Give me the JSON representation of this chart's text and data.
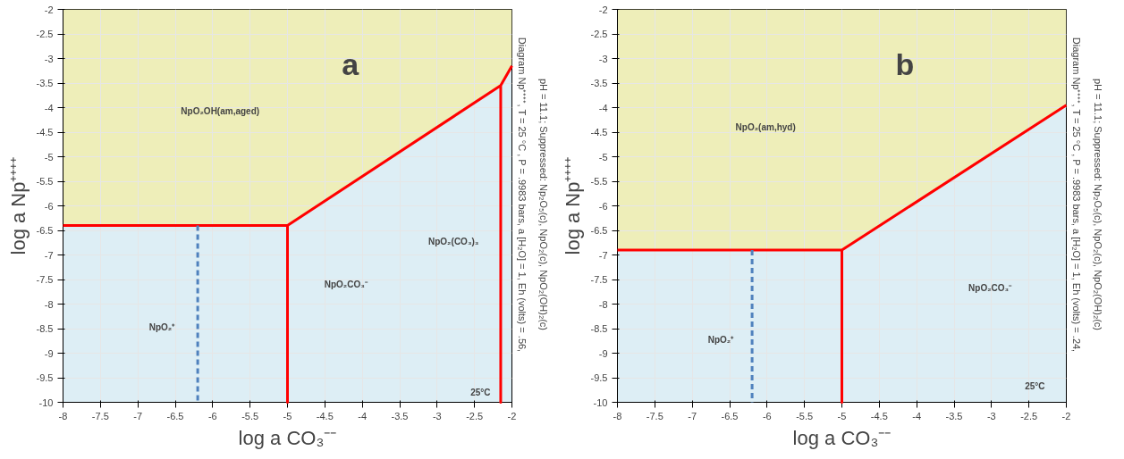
{
  "chart_data": [
    {
      "type": "line",
      "title": "a",
      "xlabel": "log a CO₃⁻⁻",
      "ylabel": "log a Np⁺⁺⁺⁺",
      "xlim": [
        -8,
        -2
      ],
      "ylim": [
        -10,
        -2
      ],
      "xticks": [
        -8,
        -7.5,
        -7,
        -6.5,
        -6,
        -5.5,
        -5,
        -4.5,
        -4,
        -3.5,
        -3,
        -2.5,
        -2
      ],
      "yticks": [
        -10,
        -9.5,
        -9,
        -8.5,
        -8,
        -7.5,
        -7,
        -6.5,
        -6,
        -5.5,
        -5,
        -4.5,
        -4,
        -3.5,
        -3,
        -2.5,
        -2
      ],
      "grid": true,
      "series": [
        {
          "type": "area",
          "color": "#eeeeb9",
          "x": [
            -8,
            -5,
            -2.15,
            -2
          ],
          "values": [
            -6.4,
            -6.4,
            -3.55,
            -3.15
          ]
        },
        {
          "type": "line",
          "color": "#ff0000",
          "x": [
            -8,
            -5,
            -5,
            -5,
            -2.15,
            -2.15,
            -2.15,
            -2
          ],
          "values": [
            -6.4,
            -6.4,
            -10,
            -6.4,
            -3.55,
            -10,
            -3.55,
            -3.15
          ]
        },
        {
          "type": "line",
          "color": "#4f81bd",
          "line_style": "dashed",
          "x": [
            -6.2,
            -6.2
          ],
          "values": [
            -6.4,
            -10
          ]
        }
      ],
      "annotations": [
        "NpO₂OH(am,aged)",
        "NpO₂⁺",
        "NpO₂CO₃⁻",
        "NpO₂(CO₃)₃",
        "25°C",
        "Diagram Np⁺⁺⁺⁺, T  =  25 °C , P  =  .9983 bars, a [H₂O]  =  1, Eh (volts)  =  .56,",
        "pH  = 11.1; Suppressed: Np₂O₅(c), NpO₂(c), NpO₂(OH)₂(c)"
      ]
    },
    {
      "type": "line",
      "title": "b",
      "xlabel": "log a CO₃⁻⁻",
      "ylabel": "log a Np⁺⁺⁺⁺",
      "xlim": [
        -8,
        -2
      ],
      "ylim": [
        -10,
        -2
      ],
      "xticks": [
        -8,
        -7.5,
        -7,
        -6.5,
        -6,
        -5.5,
        -5,
        -4.5,
        -4,
        -3.5,
        -3,
        -2.5,
        -2
      ],
      "yticks": [
        -10,
        -9.5,
        -9,
        -8.5,
        -8,
        -7.5,
        -7,
        -6.5,
        -6,
        -5.5,
        -5,
        -4.5,
        -4,
        -3.5,
        -3,
        -2.5,
        -2
      ],
      "grid": true,
      "series": [
        {
          "type": "area",
          "color": "#eeeeb9",
          "x": [
            -8,
            -5,
            -2
          ],
          "values": [
            -6.9,
            -6.9,
            -3.95
          ]
        },
        {
          "type": "line",
          "color": "#ff0000",
          "x": [
            -8,
            -5,
            -5,
            -5,
            -2
          ],
          "values": [
            -6.9,
            -6.9,
            -10,
            -6.9,
            -3.95
          ]
        },
        {
          "type": "line",
          "color": "#4f81bd",
          "line_style": "dashed",
          "x": [
            -6.2,
            -6.2
          ],
          "values": [
            -6.9,
            -10
          ]
        }
      ],
      "annotations": [
        "NpO₂(am,hyd)",
        "NpO₂⁺",
        "NpO₂CO₃⁻",
        "25°C",
        "Diagram Np⁺⁺⁺⁺, T  =  25 °C , P  =  .9983 bars, a [H₂O]  =  1, Eh (volts)  =  .24,",
        "pH  = 11.1; Suppressed: Np₂O₅(c), NpO₂(c), NpO₂(OH)₂(c)"
      ]
    }
  ]
}
